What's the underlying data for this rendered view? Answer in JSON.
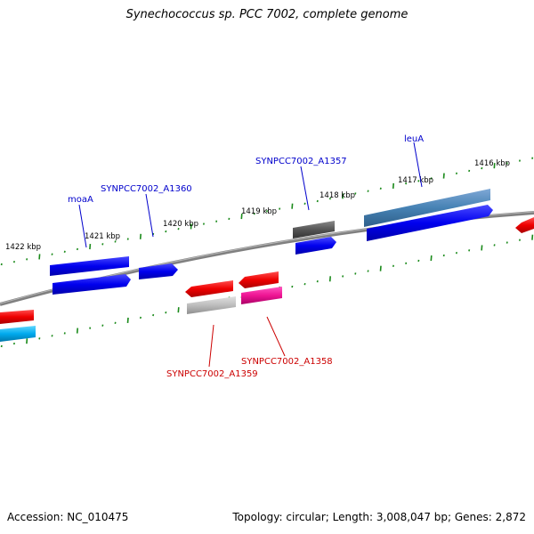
{
  "title": "Synechococcus sp. PCC 7002, complete genome",
  "footer": {
    "accession": "Accession: NC_010475",
    "summary": "Topology: circular; Length: 3,008,047 bp; Genes: 2,872"
  },
  "colors": {
    "backbone": "#808080",
    "tick": "#1a8a1a",
    "forward_label": "#0000cc",
    "reverse_label": "#cc0000"
  },
  "kbp_labels": [
    "1422 kbp",
    "1421 kbp",
    "1420 kbp",
    "1419 kbp",
    "1418 kbp",
    "1417 kbp",
    "1416 kbp"
  ],
  "gene_labels": {
    "forward": [
      "moaA",
      "SYNPCC7002_A1360",
      "SYNPCC7002_A1357",
      "leuA"
    ],
    "reverse": [
      "SYNPCC7002_A1359",
      "SYNPCC7002_A1358"
    ]
  }
}
